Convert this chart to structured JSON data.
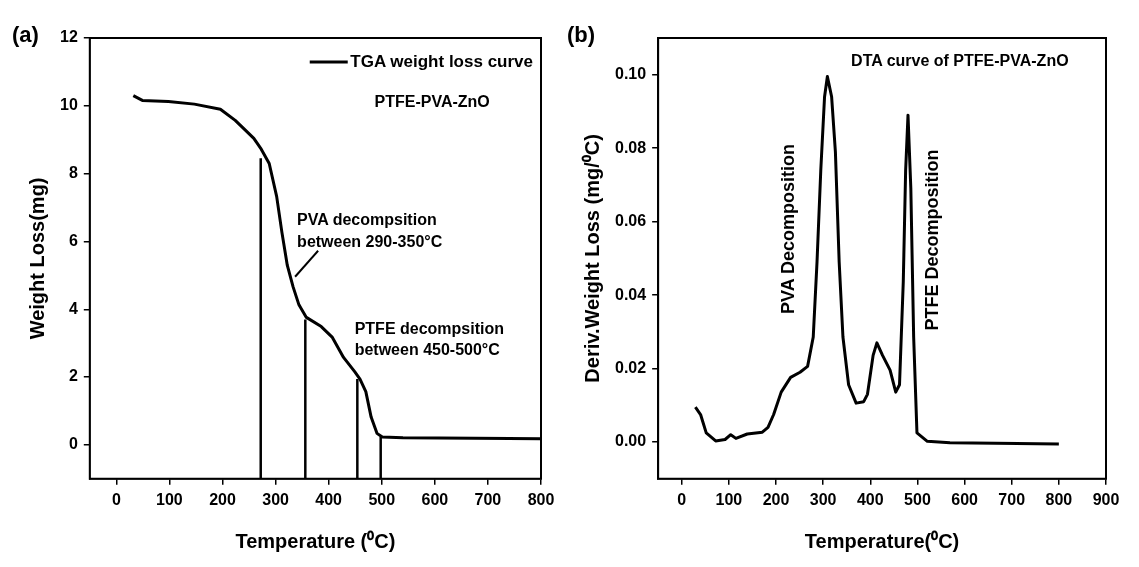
{
  "chart_data": [
    {
      "type": "line",
      "title": "(a)",
      "xlabel": "Temperature (⁰C)",
      "ylabel": "Weight Loss(mg)",
      "xlim": [
        -50,
        800
      ],
      "xticks": [
        0,
        100,
        200,
        300,
        400,
        500,
        600,
        700,
        800
      ],
      "ylim": [
        -1,
        12
      ],
      "yticks": [
        0,
        2,
        4,
        6,
        8,
        10,
        12
      ],
      "legend": "top right",
      "series": [
        {
          "name": "TGA weight loss curve",
          "color": "#000000",
          "x": [
            32,
            49,
            98,
            147,
            196,
            224,
            259,
            273,
            288,
            302,
            312,
            322,
            333,
            344,
            358,
            386,
            407,
            428,
            449,
            459,
            470,
            480,
            491,
            501,
            540,
            800
          ],
          "values": [
            10.3,
            10.16,
            10.13,
            10.05,
            9.9,
            9.57,
            9.04,
            8.72,
            8.3,
            7.33,
            6.26,
            5.3,
            4.66,
            4.13,
            3.76,
            3.49,
            3.17,
            2.58,
            2.16,
            1.94,
            1.57,
            0.82,
            0.34,
            0.23,
            0.21,
            0.18
          ]
        },
        {
          "type": "line",
          "color": "#000000",
          "x": [
            272,
            272
          ],
          "values": [
            -1,
            8.45
          ]
        },
        {
          "type": "line",
          "color": "#000000",
          "x": [
            356,
            356
          ],
          "values": [
            -1,
            3.7
          ]
        },
        {
          "type": "line",
          "color": "#000000",
          "x": [
            454,
            454
          ],
          "values": [
            -1,
            1.94
          ]
        },
        {
          "type": "line",
          "color": "#000000",
          "x": [
            498,
            498
          ],
          "values": [
            -1,
            0.23
          ]
        }
      ],
      "annotations": [
        "PTFE-PVA-ZnO",
        {
          "text": "PVA decompsition\nbetween 290-350°C",
          "x": 333,
          "y": 4.9
        },
        "PTFE decompsition\nbetween 450-500°C"
      ]
    },
    {
      "type": "line",
      "title": "(b)",
      "xlabel": "Temperature(⁰C)",
      "ylabel": "Deriv.Weight Loss (mg/⁰C)",
      "xlim": [
        -50,
        900
      ],
      "xticks": [
        0,
        100,
        200,
        300,
        400,
        500,
        600,
        700,
        800,
        900
      ],
      "ylim": [
        -0.01,
        0.11
      ],
      "yticks": [
        {
          "value": 0,
          "label": "0.00"
        },
        0.02,
        0.04,
        0.06,
        0.08,
        {
          "value": 0.1,
          "label": "0.10"
        }
      ],
      "series": [
        {
          "color": "#000000",
          "x": [
            29,
            40,
            52,
            72,
            92,
            104,
            115,
            139,
            171,
            183,
            195,
            211,
            231,
            251,
            267,
            279,
            287,
            295,
            303,
            309,
            318,
            326,
            334,
            342,
            354,
            370,
            386,
            394,
            406,
            414,
            426,
            442,
            454,
            462,
            470,
            475,
            480,
            486,
            492,
            499,
            521,
            569,
            800
          ],
          "values": [
            0.0095,
            0.0075,
            0.0025,
            0.0003,
            0.0007,
            0.002,
            0.001,
            0.0022,
            0.0027,
            0.004,
            0.0075,
            0.0136,
            0.0176,
            0.019,
            0.0206,
            0.0286,
            0.049,
            0.074,
            0.094,
            0.0995,
            0.094,
            0.079,
            0.049,
            0.0286,
            0.0156,
            0.0106,
            0.011,
            0.013,
            0.0236,
            0.027,
            0.0236,
            0.0196,
            0.0136,
            0.0156,
            0.0437,
            0.074,
            0.089,
            0.069,
            0.0286,
            0.0025,
            0.0002,
            -0.0002,
            -0.0005
          ]
        }
      ],
      "annotations": [
        "DTA curve of PTFE-PVA-ZnO",
        "PVA Decomposition",
        "PTFE Decomposition"
      ]
    }
  ]
}
